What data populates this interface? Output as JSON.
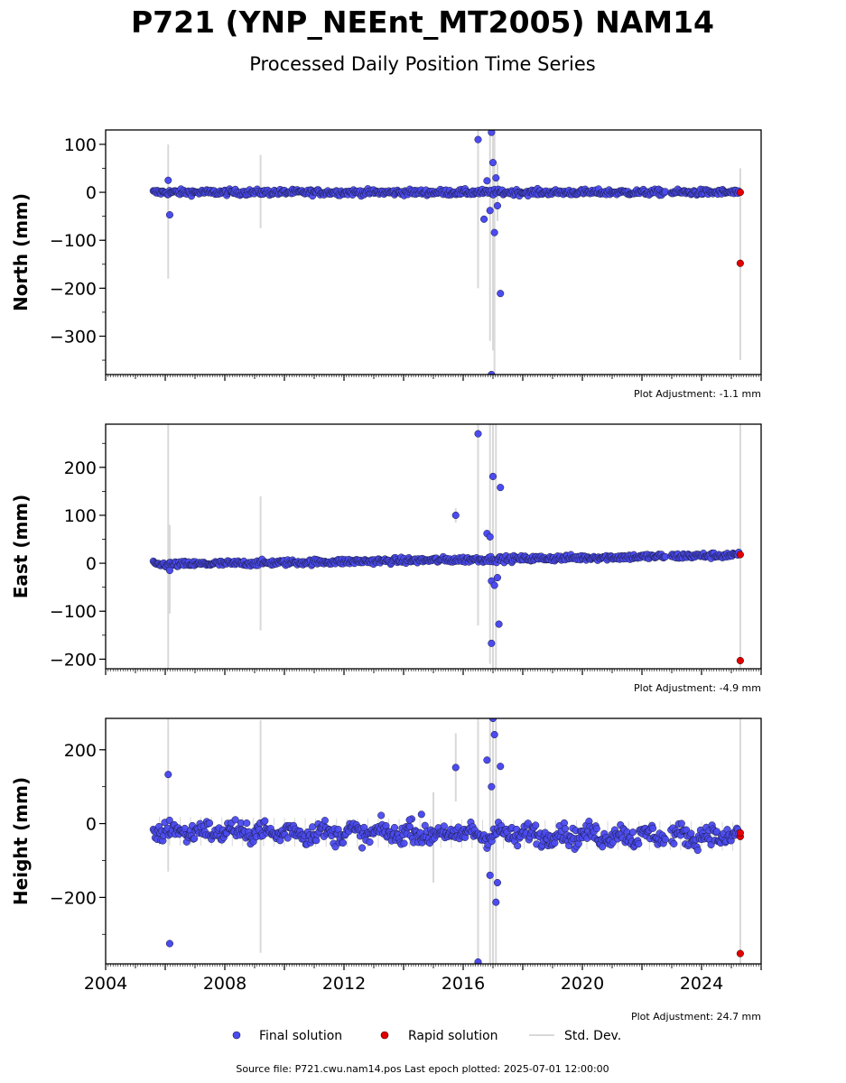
{
  "title": "P721 (YNP_NEEnt_MT2005) NAM14",
  "subtitle": "Processed Daily Position Time Series",
  "footer": "Source file: P721.cwu.nam14.pos  Last epoch plotted: 2025-07-01 12:00:00",
  "legend": {
    "final": "Final solution",
    "rapid": "Rapid solution",
    "std": "Std. Dev."
  },
  "colors": {
    "final": "#4b4bf0",
    "final_edge": "#1a1a3a",
    "rapid": "#e00000",
    "std": "#d9d9d9"
  },
  "chart_data": [
    {
      "type": "scatter",
      "ylabel": "North (mm)",
      "adjustment": "Plot Adjustment: -1.1 mm",
      "xlim": [
        2004,
        2026
      ],
      "ylim": [
        -380,
        130
      ],
      "yticks": [
        100,
        0,
        -100,
        -200,
        -300
      ],
      "ytick_labels": [
        "100",
        "0",
        "−100",
        "−200",
        "−300"
      ],
      "trend": {
        "start": 0,
        "end": 0,
        "scatter": 3
      },
      "gap": [
        2022.8,
        2022.95
      ],
      "outliers": [
        [
          2006.1,
          25
        ],
        [
          2006.15,
          -47
        ],
        [
          2016.5,
          110
        ],
        [
          2016.7,
          -56
        ],
        [
          2016.8,
          24
        ],
        [
          2016.9,
          -38
        ],
        [
          2016.95,
          125
        ],
        [
          2017.0,
          62
        ],
        [
          2017.05,
          -84
        ],
        [
          2017.1,
          30
        ],
        [
          2017.15,
          -28
        ],
        [
          2017.25,
          -211
        ],
        [
          2016.95,
          -380
        ]
      ],
      "rapid": [
        [
          2025.3,
          0
        ],
        [
          2025.3,
          -148
        ]
      ],
      "stddev": [
        [
          2006.1,
          -180,
          100
        ],
        [
          2009.2,
          -75,
          78
        ],
        [
          2016.5,
          -200,
          130
        ],
        [
          2016.9,
          -310,
          130
        ],
        [
          2017.0,
          -330,
          130
        ],
        [
          2017.05,
          -380,
          130
        ],
        [
          2017.15,
          -60,
          60
        ],
        [
          2025.3,
          -350,
          50
        ]
      ]
    },
    {
      "type": "scatter",
      "ylabel": "East (mm)",
      "adjustment": "Plot Adjustment: -4.9 mm",
      "xlim": [
        2004,
        2026
      ],
      "ylim": [
        -220,
        290
      ],
      "yticks": [
        200,
        100,
        0,
        -100,
        -200
      ],
      "ytick_labels": [
        "200",
        "100",
        "0",
        "−100",
        "−200"
      ],
      "trend": {
        "start": -3,
        "end": 17,
        "scatter": 3
      },
      "gap": [
        2022.8,
        2022.95
      ],
      "outliers": [
        [
          2006.15,
          -15
        ],
        [
          2015.75,
          100
        ],
        [
          2016.5,
          270
        ],
        [
          2016.8,
          62
        ],
        [
          2016.9,
          55
        ],
        [
          2016.95,
          -37
        ],
        [
          2016.95,
          -167
        ],
        [
          2017.0,
          181
        ],
        [
          2017.05,
          -46
        ],
        [
          2017.15,
          -30
        ],
        [
          2017.2,
          -127
        ],
        [
          2017.25,
          158
        ]
      ],
      "rapid": [
        [
          2025.3,
          18
        ],
        [
          2025.3,
          -203
        ]
      ],
      "stddev": [
        [
          2006.1,
          -220,
          290
        ],
        [
          2006.15,
          -105,
          80
        ],
        [
          2009.2,
          -140,
          140
        ],
        [
          2015.75,
          85,
          115
        ],
        [
          2016.5,
          -130,
          290
        ],
        [
          2016.9,
          -210,
          290
        ],
        [
          2017.0,
          -220,
          290
        ],
        [
          2017.1,
          -220,
          290
        ],
        [
          2025.3,
          -220,
          290
        ]
      ]
    },
    {
      "type": "scatter",
      "ylabel": "Height (mm)",
      "adjustment": "Plot Adjustment: 24.7 mm",
      "xlim": [
        2004,
        2026
      ],
      "ylim": [
        -380,
        285
      ],
      "yticks": [
        200,
        0,
        -200
      ],
      "ytick_labels": [
        "200",
        "0",
        "−200"
      ],
      "trend": {
        "start": -20,
        "end": -35,
        "scatter": 13
      },
      "gap": [
        2022.8,
        2022.95
      ],
      "outliers": [
        [
          2006.1,
          133
        ],
        [
          2006.15,
          -325
        ],
        [
          2014.2,
          10
        ],
        [
          2014.6,
          25
        ],
        [
          2015.75,
          152
        ],
        [
          2016.5,
          -375
        ],
        [
          2016.8,
          172
        ],
        [
          2016.9,
          -140
        ],
        [
          2016.95,
          100
        ],
        [
          2017.0,
          285
        ],
        [
          2017.05,
          241
        ],
        [
          2017.1,
          -213
        ],
        [
          2017.15,
          -160
        ],
        [
          2017.25,
          155
        ]
      ],
      "rapid": [
        [
          2025.3,
          -35
        ],
        [
          2025.3,
          -25
        ],
        [
          2025.3,
          -352
        ]
      ],
      "stddev": [
        [
          2006.1,
          -130,
          285
        ],
        [
          2009.2,
          -350,
          280
        ],
        [
          2015.0,
          -160,
          85
        ],
        [
          2015.75,
          60,
          245
        ],
        [
          2016.5,
          -380,
          285
        ],
        [
          2016.9,
          -380,
          285
        ],
        [
          2017.0,
          -380,
          285
        ],
        [
          2017.1,
          -380,
          285
        ],
        [
          2025.3,
          -380,
          285
        ]
      ]
    }
  ],
  "x_tick_labels": [
    "2004",
    "2008",
    "2012",
    "2016",
    "2020",
    "2024"
  ]
}
